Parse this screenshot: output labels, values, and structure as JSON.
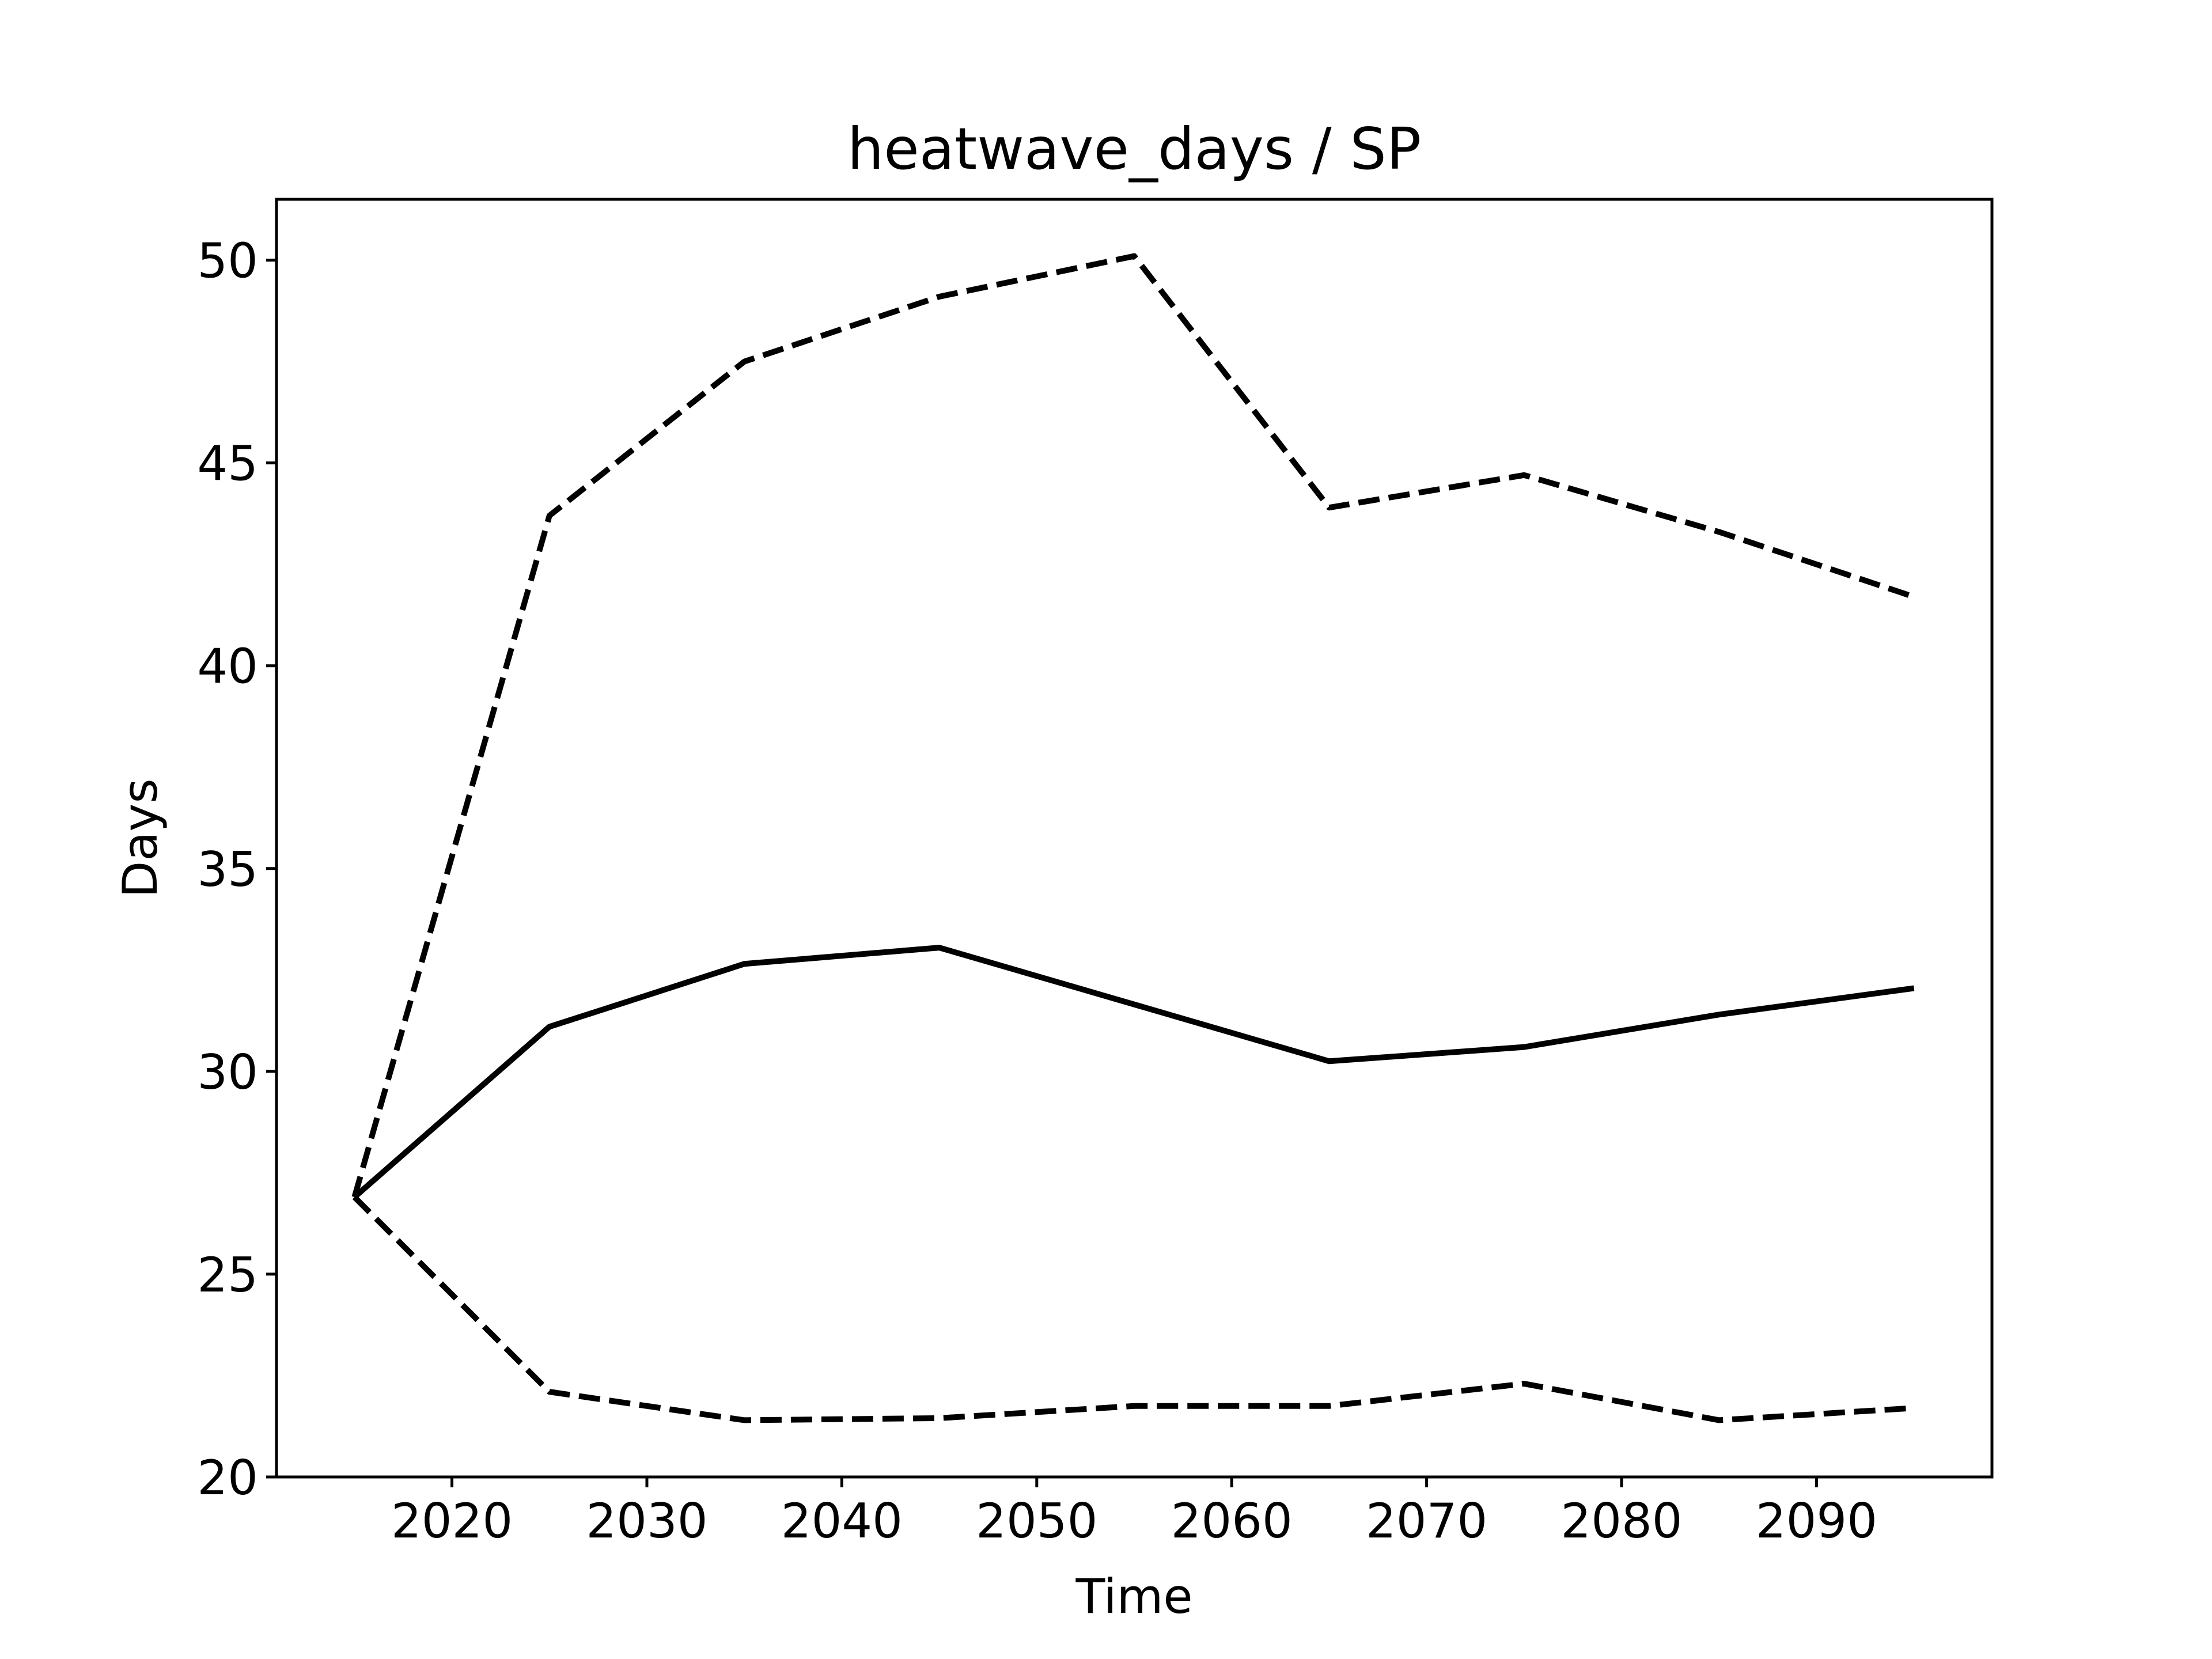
{
  "chart_data": {
    "type": "line",
    "title": "heatwave_days / SP",
    "xlabel": "Time",
    "ylabel": "Days",
    "xlim": [
      2011,
      2099
    ],
    "ylim": [
      20,
      51.5
    ],
    "xticks": [
      2020,
      2030,
      2040,
      2050,
      2060,
      2070,
      2080,
      2090
    ],
    "yticks": [
      20,
      25,
      30,
      35,
      40,
      45,
      50
    ],
    "grid": false,
    "x": [
      2015,
      2025,
      2035,
      2045,
      2055,
      2065,
      2075,
      2085,
      2095
    ],
    "series": [
      {
        "style": "solid",
        "color": "#000000",
        "values": [
          26.9,
          31.1,
          32.65,
          33.05,
          31.65,
          30.25,
          30.6,
          31.4,
          32.05
        ]
      },
      {
        "style": "dashed",
        "color": "#000000",
        "values": [
          26.9,
          43.7,
          47.5,
          49.1,
          50.1,
          43.9,
          44.7,
          43.3,
          41.7
        ]
      },
      {
        "style": "dashed",
        "color": "#000000",
        "values": [
          26.9,
          22.1,
          21.4,
          21.45,
          21.75,
          21.75,
          22.3,
          21.4,
          21.7
        ]
      }
    ]
  }
}
